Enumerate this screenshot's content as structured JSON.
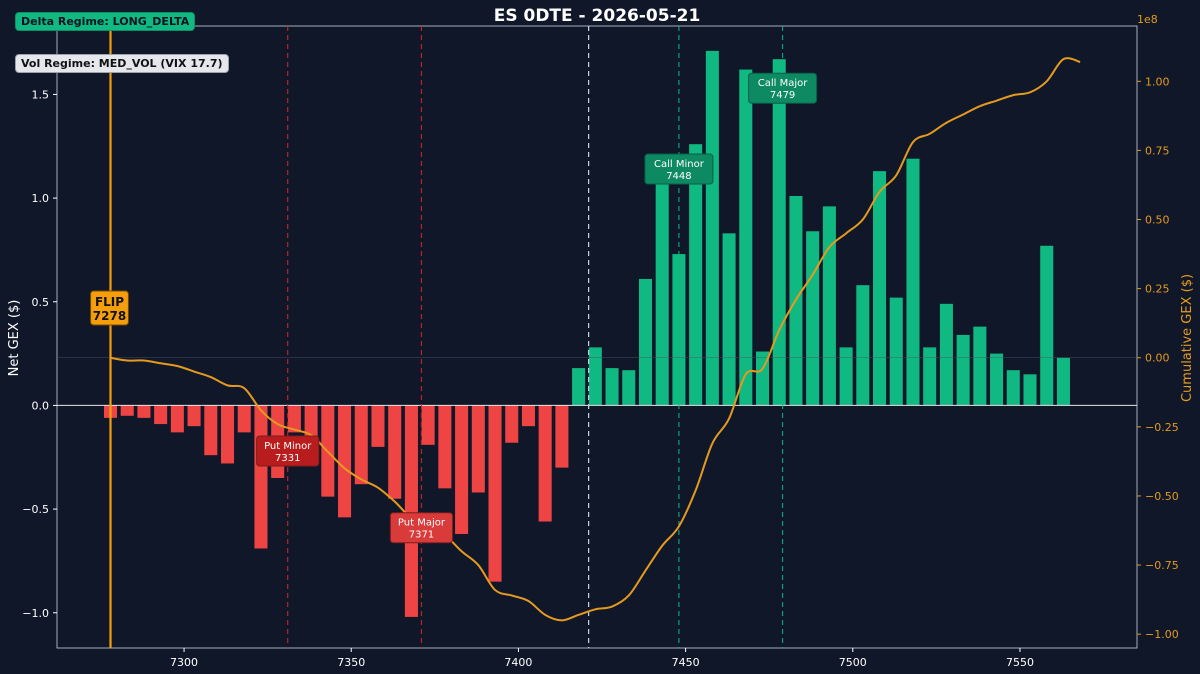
{
  "title": "ES 0DTE  -  2026-05-21",
  "badges": {
    "delta_regime": "Delta Regime: LONG_DELTA",
    "vol_regime": "Vol Regime: MED_VOL  (VIX 17.7)"
  },
  "colors": {
    "background": "#0f1729",
    "positive": "#10b981",
    "negative": "#ef4444",
    "cumulative": "#e59a1e",
    "flip": "#f59e0b",
    "put_line": "#dc2626",
    "call_line": "#10b981"
  },
  "chart_data": {
    "type": "bar",
    "ylabel": "Net GEX ($)",
    "y2label": "Cumulative GEX ($)",
    "y2_scale_label": "1e8",
    "xlim": [
      7262,
      7585
    ],
    "ylim": [
      -1.17,
      1.83
    ],
    "y2lim": [
      -1.05,
      1.2
    ],
    "xticks": [
      7300,
      7350,
      7400,
      7450,
      7500,
      7550
    ],
    "yticks": [
      -1.0,
      -0.5,
      0.0,
      0.5,
      1.0,
      1.5
    ],
    "yticklabels": [
      "−1.0",
      "−0.5",
      "0.0",
      "0.5",
      "1.0",
      "1.5"
    ],
    "y2ticks": [
      -1.0,
      -0.75,
      -0.5,
      -0.25,
      0.0,
      0.25,
      0.5,
      0.75,
      1.0
    ],
    "y2ticklabels": [
      "−1.00",
      "−0.75",
      "−0.50",
      "−0.25",
      "0.00",
      "0.25",
      "0.50",
      "0.75",
      "1.00"
    ],
    "strikes": [
      7278,
      7283,
      7288,
      7293,
      7298,
      7303,
      7308,
      7313,
      7318,
      7323,
      7328,
      7333,
      7338,
      7343,
      7348,
      7353,
      7358,
      7363,
      7368,
      7373,
      7378,
      7383,
      7388,
      7393,
      7398,
      7403,
      7408,
      7413,
      7418,
      7423,
      7428,
      7433,
      7438,
      7443,
      7448,
      7453,
      7458,
      7463,
      7468,
      7473,
      7478,
      7483,
      7488,
      7493,
      7498,
      7503,
      7508,
      7513,
      7518,
      7523,
      7528,
      7533,
      7538,
      7543,
      7548,
      7553,
      7558,
      7563,
      7568
    ],
    "values": [
      -0.06,
      -0.05,
      -0.06,
      -0.09,
      -0.13,
      -0.1,
      -0.24,
      -0.28,
      -0.13,
      -0.69,
      -0.35,
      -0.13,
      -0.25,
      -0.44,
      -0.54,
      -0.38,
      -0.2,
      -0.45,
      -1.02,
      -0.19,
      -0.4,
      -0.62,
      -0.42,
      -0.85,
      -0.18,
      -0.1,
      -0.56,
      -0.3,
      0.18,
      0.28,
      0.18,
      0.17,
      0.61,
      1.13,
      0.73,
      1.26,
      1.71,
      0.83,
      1.62,
      0.26,
      1.67,
      1.01,
      0.84,
      0.96,
      0.28,
      0.58,
      1.13,
      0.52,
      1.19,
      0.28,
      0.49,
      0.34,
      0.38,
      0.25,
      0.17,
      0.15,
      0.77,
      0.23,
      0.0
    ],
    "cumulative": {
      "x": [
        7278,
        7283,
        7288,
        7293,
        7298,
        7303,
        7308,
        7313,
        7318,
        7323,
        7328,
        7333,
        7338,
        7343,
        7348,
        7353,
        7358,
        7363,
        7368,
        7373,
        7378,
        7383,
        7388,
        7393,
        7398,
        7403,
        7408,
        7413,
        7418,
        7423,
        7428,
        7433,
        7438,
        7443,
        7448,
        7453,
        7458,
        7463,
        7468,
        7473,
        7478,
        7483,
        7488,
        7493,
        7498,
        7503,
        7508,
        7513,
        7518,
        7523,
        7528,
        7533,
        7538,
        7543,
        7548,
        7553,
        7558,
        7563,
        7568
      ],
      "y": [
        0.0,
        -0.01,
        -0.01,
        -0.02,
        -0.03,
        -0.05,
        -0.07,
        -0.1,
        -0.11,
        -0.19,
        -0.24,
        -0.26,
        -0.28,
        -0.34,
        -0.4,
        -0.44,
        -0.47,
        -0.52,
        -0.58,
        -0.6,
        -0.64,
        -0.7,
        -0.75,
        -0.84,
        -0.86,
        -0.88,
        -0.93,
        -0.95,
        -0.93,
        -0.91,
        -0.9,
        -0.86,
        -0.77,
        -0.68,
        -0.61,
        -0.48,
        -0.31,
        -0.22,
        -0.06,
        -0.04,
        0.1,
        0.21,
        0.3,
        0.4,
        0.45,
        0.5,
        0.6,
        0.66,
        0.78,
        0.81,
        0.85,
        0.88,
        0.91,
        0.93,
        0.95,
        0.96,
        1.0,
        1.08,
        1.07
      ]
    },
    "flip": {
      "label": "FLIP",
      "value": "7278",
      "x": 7278
    },
    "levels": [
      {
        "label": "Put Minor",
        "value": "7331",
        "x": 7331,
        "kind": "put",
        "y": -0.22
      },
      {
        "label": "Put Major",
        "value": "7371",
        "x": 7371,
        "kind": "put",
        "y": -0.59
      },
      {
        "label": "Call Minor",
        "value": "7448",
        "x": 7448,
        "kind": "call",
        "y": 1.14
      },
      {
        "label": "Call Major",
        "value": "7479",
        "x": 7479,
        "kind": "call",
        "y": 1.53
      }
    ],
    "spot_x": 7421
  }
}
